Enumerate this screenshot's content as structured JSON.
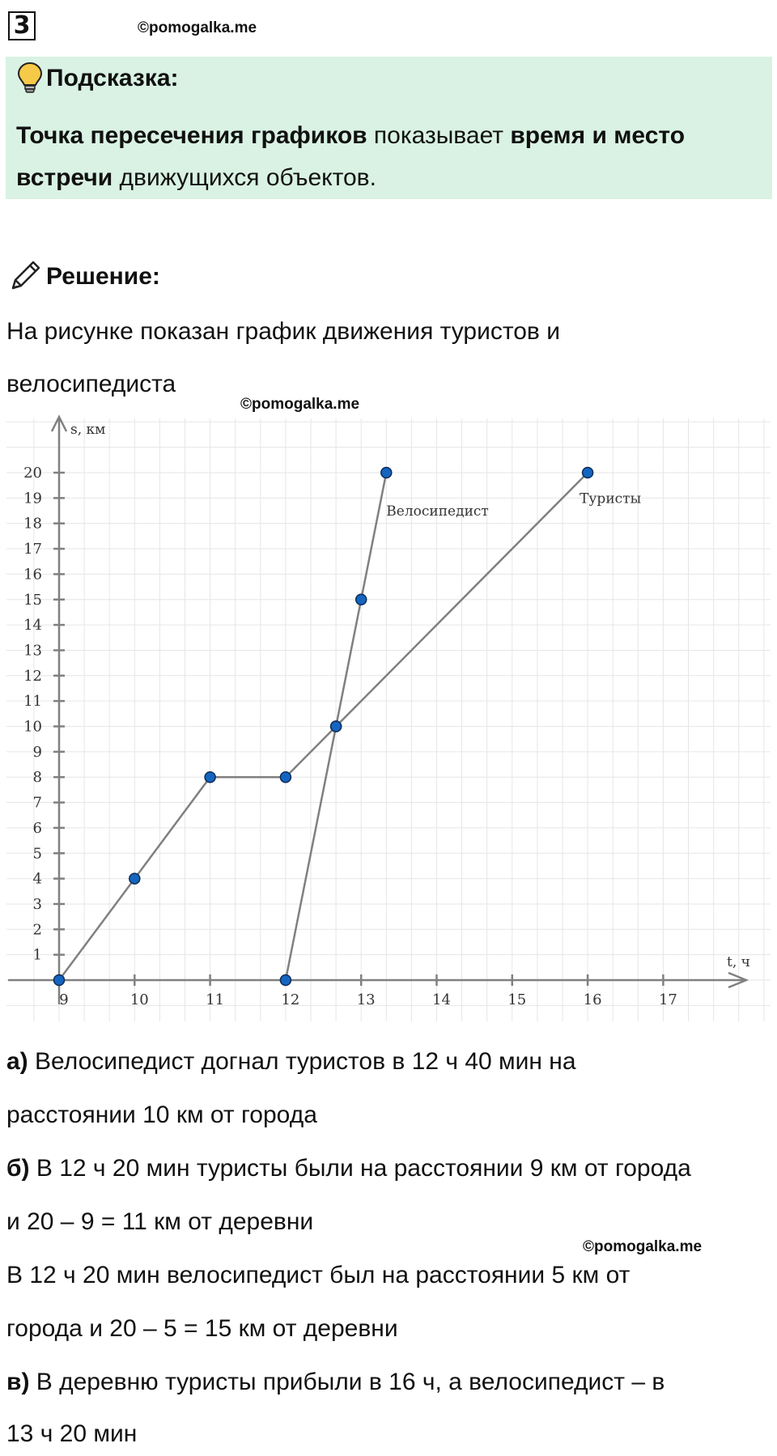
{
  "task_number": "3",
  "watermark": "©pomogalka.me",
  "hint": {
    "title": "Подсказка:",
    "bold1": "Точка пересечения графиков",
    "text1": " показывает ",
    "bold2": "время и место встречи",
    "text2": " движущихся объектов."
  },
  "solution": {
    "title": "Решение:",
    "intro_line1": "На рисунке показан график движения туристов и",
    "intro_line2": "велосипедиста"
  },
  "answers": {
    "a_label": "а)",
    "a_line1": " Велосипедист догнал туристов в 12 ч 40 мин на",
    "a_line2": "расстоянии 10 км от города",
    "b_label": "б)",
    "b_line1": " В 12 ч 20 мин туристы были на расстоянии 9 км от города",
    "b_line2": "и 20 – 9 = 11 км от деревни",
    "b_line3": "В 12 ч 20 мин велосипедист был на расстоянии 5 км от",
    "b_line4": "города и 20 – 5 = 15 км от деревни",
    "v_label": "в)",
    "v_line1": " В деревню туристы прибыли в 16 ч, а велосипедист – в",
    "v_line2": "13 ч 20 мин"
  },
  "chart_data": {
    "type": "line",
    "xlabel": "t, ч",
    "ylabel": "s, км",
    "xlim": [
      9,
      18
    ],
    "ylim": [
      0,
      21
    ],
    "x_ticks": [
      9,
      10,
      11,
      12,
      13,
      14,
      15,
      16,
      17
    ],
    "y_ticks": [
      1,
      2,
      3,
      4,
      5,
      6,
      7,
      8,
      9,
      10,
      11,
      12,
      13,
      14,
      15,
      16,
      17,
      18,
      19,
      20
    ],
    "grid": true,
    "series": [
      {
        "name": "Туристы",
        "points": [
          [
            9,
            0
          ],
          [
            10,
            4
          ],
          [
            11,
            8
          ],
          [
            12,
            8
          ],
          [
            12.667,
            10
          ],
          [
            16,
            20
          ]
        ]
      },
      {
        "name": "Велосипедист",
        "points": [
          [
            12,
            0
          ],
          [
            12.667,
            10
          ],
          [
            13,
            15
          ],
          [
            13.333,
            20
          ]
        ]
      }
    ],
    "line_color": "#808080",
    "marker_color": "#1565c0"
  }
}
